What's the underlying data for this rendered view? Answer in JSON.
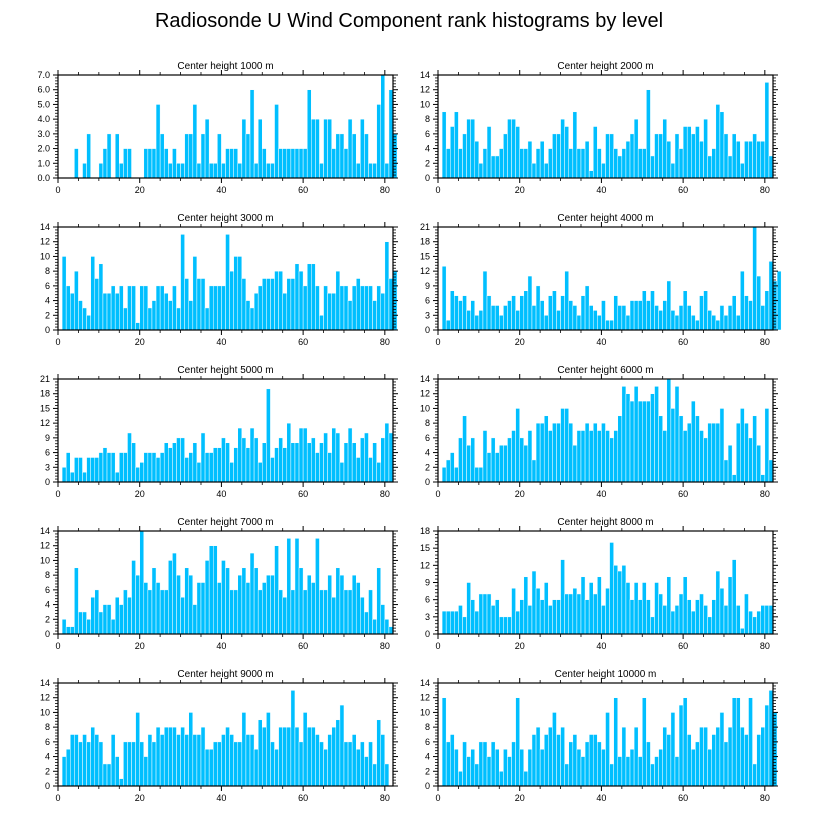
{
  "title": "Radiosonde U Wind Component rank histograms by level",
  "colors": {
    "bar": "#00BFFF",
    "bar_edge": "#FFFFFF",
    "axis": "#000000",
    "background": "#FFFFFF"
  },
  "chart_data": [
    {
      "type": "bar",
      "title": "Center height 1000 m",
      "xlim": [
        0,
        82
      ],
      "ylim": [
        0,
        7
      ],
      "xticks": [
        "0",
        "20",
        "40",
        "60",
        "80"
      ],
      "yticks": [
        "0.0",
        "1.0",
        "2.0",
        "3.0",
        "4.0",
        "5.0",
        "6.0",
        "7.0"
      ],
      "values": [
        0,
        0,
        0,
        0,
        2,
        0,
        1,
        3,
        0,
        0,
        1,
        2,
        3,
        0,
        3,
        1,
        2,
        2,
        0,
        0,
        0,
        2,
        2,
        2,
        5,
        3,
        2,
        1,
        2,
        1,
        1,
        3,
        3,
        5,
        1,
        3,
        4,
        1,
        1,
        3,
        1,
        2,
        2,
        2,
        1,
        4,
        3,
        6,
        1,
        4,
        2,
        1,
        1,
        5,
        2,
        2,
        2,
        2,
        2,
        2,
        2,
        6,
        4,
        4,
        1,
        4,
        4,
        2,
        3,
        3,
        2,
        4,
        3,
        1,
        4,
        3,
        1,
        1,
        5,
        7,
        1,
        6,
        3
      ],
      "xlabel": "",
      "ylabel": ""
    },
    {
      "type": "bar",
      "title": "Center height 2000 m",
      "xlim": [
        0,
        82
      ],
      "ylim": [
        0,
        14
      ],
      "xticks": [
        "0",
        "20",
        "40",
        "60",
        "80"
      ],
      "yticks": [
        "0",
        "2",
        "4",
        "6",
        "8",
        "10",
        "12",
        "14"
      ],
      "values": [
        0,
        9,
        4,
        7,
        9,
        4,
        6,
        8,
        8,
        5,
        2,
        4,
        7,
        3,
        3,
        4,
        6,
        8,
        8,
        7,
        4,
        4,
        5,
        2,
        4,
        5,
        2,
        4,
        6,
        6,
        8,
        7,
        4,
        9,
        4,
        4,
        5,
        1,
        7,
        4,
        2,
        6,
        6,
        4,
        3,
        4,
        5,
        6,
        8,
        4,
        4,
        12,
        3,
        6,
        6,
        8,
        5,
        2,
        6,
        4,
        7,
        7,
        6,
        7,
        5,
        8,
        3,
        4,
        10,
        9,
        6,
        3,
        6,
        5,
        2,
        5,
        5,
        6,
        5,
        5,
        13,
        3
      ],
      "xlabel": "",
      "ylabel": ""
    },
    {
      "type": "bar",
      "title": "Center height 3000 m",
      "xlim": [
        0,
        82
      ],
      "ylim": [
        0,
        14
      ],
      "xticks": [
        "0",
        "20",
        "40",
        "60",
        "80"
      ],
      "yticks": [
        "0",
        "2",
        "4",
        "6",
        "8",
        "10",
        "12",
        "14"
      ],
      "values": [
        0,
        10,
        6,
        5,
        8,
        4,
        3,
        2,
        10,
        7,
        9,
        5,
        5,
        6,
        5,
        6,
        3,
        6,
        6,
        1,
        6,
        6,
        3,
        4,
        6,
        6,
        5,
        4,
        6,
        3,
        13,
        7,
        4,
        10,
        7,
        7,
        3,
        6,
        6,
        6,
        6,
        13,
        8,
        10,
        10,
        7,
        4,
        3,
        5,
        6,
        7,
        7,
        7,
        8,
        8,
        5,
        7,
        7,
        9,
        8,
        6,
        9,
        9,
        6,
        2,
        6,
        5,
        5,
        8,
        6,
        6,
        4,
        6,
        7,
        6,
        6,
        6,
        4,
        6,
        5,
        12,
        7,
        8
      ],
      "xlabel": "",
      "ylabel": ""
    },
    {
      "type": "bar",
      "title": "Center height 4000 m",
      "xlim": [
        0,
        82
      ],
      "ylim": [
        0,
        21
      ],
      "xticks": [
        "0",
        "20",
        "40",
        "60",
        "80"
      ],
      "yticks": [
        "0",
        "3",
        "6",
        "9",
        "12",
        "15",
        "18",
        "21"
      ],
      "values": [
        0,
        13,
        2,
        8,
        7,
        6,
        7,
        4,
        6,
        3,
        4,
        12,
        7,
        5,
        5,
        3,
        5,
        6,
        7,
        4,
        7,
        8,
        11,
        5,
        9,
        6,
        3,
        7,
        8,
        4,
        7,
        12,
        6,
        5,
        3,
        7,
        9,
        5,
        4,
        3,
        6,
        2,
        2,
        7,
        5,
        5,
        3,
        6,
        6,
        6,
        8,
        6,
        8,
        5,
        4,
        6,
        10,
        4,
        3,
        5,
        8,
        5,
        3,
        2,
        7,
        8,
        4,
        3,
        2,
        5,
        3,
        5,
        7,
        3,
        12,
        7,
        6,
        21,
        11,
        5,
        8,
        14,
        10,
        12
      ],
      "xlabel": "",
      "ylabel": ""
    },
    {
      "type": "bar",
      "title": "Center height 5000 m",
      "xlim": [
        0,
        82
      ],
      "ylim": [
        0,
        21
      ],
      "xticks": [
        "0",
        "20",
        "40",
        "60",
        "80"
      ],
      "yticks": [
        "0",
        "3",
        "6",
        "9",
        "12",
        "15",
        "18",
        "21"
      ],
      "values": [
        0,
        3,
        6,
        2,
        5,
        5,
        2,
        5,
        5,
        5,
        6,
        7,
        6,
        6,
        2,
        6,
        6,
        10,
        8,
        3,
        4,
        6,
        6,
        6,
        5,
        6,
        8,
        7,
        8,
        9,
        9,
        5,
        6,
        8,
        4,
        10,
        6,
        6,
        7,
        7,
        9,
        8,
        4,
        7,
        11,
        9,
        7,
        11,
        9,
        4,
        8,
        19,
        5,
        7,
        9,
        7,
        12,
        8,
        8,
        11,
        11,
        8,
        9,
        6,
        8,
        10,
        6,
        11,
        10,
        4,
        8,
        11,
        8,
        5,
        9,
        10,
        5,
        8,
        4,
        9,
        12,
        10
      ],
      "xlabel": "",
      "ylabel": ""
    },
    {
      "type": "bar",
      "title": "Center height 6000 m",
      "xlim": [
        0,
        82
      ],
      "ylim": [
        0,
        14
      ],
      "xticks": [
        "0",
        "20",
        "40",
        "60",
        "80"
      ],
      "yticks": [
        "0",
        "2",
        "4",
        "6",
        "8",
        "10",
        "12",
        "14"
      ],
      "values": [
        0,
        2,
        3,
        4,
        2,
        6,
        9,
        5,
        6,
        2,
        2,
        7,
        4,
        6,
        4,
        5,
        5,
        6,
        7,
        10,
        6,
        5,
        7,
        3,
        8,
        8,
        9,
        7,
        8,
        8,
        10,
        10,
        8,
        5,
        7,
        7,
        8,
        7,
        8,
        7,
        8,
        7,
        6,
        7,
        9,
        13,
        12,
        11,
        13,
        11,
        11,
        11,
        12,
        13,
        9,
        7,
        14,
        10,
        13,
        9,
        7,
        8,
        11,
        9,
        7,
        6,
        8,
        8,
        8,
        10,
        3,
        5,
        1,
        8,
        10,
        8,
        6,
        9,
        5,
        1,
        10,
        3
      ],
      "xlabel": "",
      "ylabel": ""
    },
    {
      "type": "bar",
      "title": "Center height 7000 m",
      "xlim": [
        0,
        82
      ],
      "ylim": [
        0,
        14
      ],
      "xticks": [
        "0",
        "20",
        "40",
        "60",
        "80"
      ],
      "yticks": [
        "0",
        "2",
        "4",
        "6",
        "8",
        "10",
        "12",
        "14"
      ],
      "values": [
        0,
        2,
        1,
        1,
        9,
        3,
        3,
        2,
        5,
        6,
        3,
        4,
        4,
        2,
        5,
        4,
        6,
        5,
        10,
        8,
        14,
        7,
        6,
        9,
        7,
        6,
        6,
        10,
        11,
        8,
        5,
        9,
        8,
        4,
        7,
        7,
        10,
        12,
        12,
        7,
        10,
        9,
        6,
        6,
        8,
        9,
        7,
        11,
        9,
        6,
        7,
        8,
        8,
        12,
        6,
        5,
        13,
        6,
        13,
        9,
        6,
        8,
        7,
        13,
        6,
        6,
        8,
        5,
        9,
        8,
        6,
        6,
        8,
        7,
        5,
        3,
        6,
        2,
        9,
        4,
        2,
        1
      ],
      "xlabel": "",
      "ylabel": ""
    },
    {
      "type": "bar",
      "title": "Center height 8000 m",
      "xlim": [
        0,
        82
      ],
      "ylim": [
        0,
        18
      ],
      "xticks": [
        "0",
        "20",
        "40",
        "60",
        "80"
      ],
      "yticks": [
        "0",
        "3",
        "6",
        "9",
        "12",
        "15",
        "18"
      ],
      "values": [
        0,
        4,
        4,
        4,
        4,
        5,
        3,
        9,
        6,
        4,
        7,
        7,
        7,
        5,
        6,
        3,
        3,
        3,
        8,
        4,
        6,
        10,
        5,
        11,
        8,
        6,
        9,
        5,
        6,
        6,
        13,
        7,
        7,
        8,
        7,
        10,
        6,
        9,
        7,
        10,
        5,
        8,
        16,
        12,
        11,
        12,
        9,
        6,
        9,
        6,
        9,
        6,
        3,
        9,
        7,
        5,
        10,
        4,
        5,
        7,
        10,
        6,
        4,
        6,
        7,
        5,
        3,
        6,
        11,
        8,
        5,
        10,
        13,
        5,
        1,
        7,
        4,
        3,
        4,
        5,
        5,
        5
      ],
      "xlabel": "",
      "ylabel": ""
    },
    {
      "type": "bar",
      "title": "Center height 9000 m",
      "xlim": [
        0,
        82
      ],
      "ylim": [
        0,
        14
      ],
      "xticks": [
        "0",
        "20",
        "40",
        "60",
        "80"
      ],
      "yticks": [
        "0",
        "2",
        "4",
        "6",
        "8",
        "10",
        "12",
        "14"
      ],
      "values": [
        0,
        4,
        5,
        7,
        7,
        6,
        7,
        6,
        8,
        7,
        6,
        3,
        3,
        7,
        4,
        1,
        6,
        6,
        6,
        10,
        6,
        4,
        7,
        6,
        8,
        7,
        8,
        8,
        8,
        7,
        8,
        7,
        10,
        7,
        7,
        8,
        5,
        5,
        6,
        6,
        7,
        8,
        7,
        6,
        6,
        10,
        7,
        7,
        5,
        9,
        8,
        10,
        6,
        5,
        8,
        8,
        8,
        13,
        8,
        6,
        10,
        8,
        8,
        7,
        6,
        5,
        7,
        8,
        9,
        11,
        6,
        6,
        7,
        5,
        6,
        4,
        6,
        3,
        9,
        7,
        3
      ],
      "xlabel": "",
      "ylabel": ""
    },
    {
      "type": "bar",
      "title": "Center height 10000 m",
      "xlim": [
        0,
        82
      ],
      "ylim": [
        0,
        14
      ],
      "xticks": [
        "0",
        "20",
        "40",
        "60",
        "80"
      ],
      "yticks": [
        "0",
        "2",
        "4",
        "6",
        "8",
        "10",
        "12",
        "14"
      ],
      "values": [
        0,
        12,
        6,
        7,
        5,
        2,
        6,
        4,
        5,
        3,
        6,
        6,
        4,
        6,
        5,
        2,
        5,
        4,
        6,
        12,
        5,
        2,
        5,
        7,
        8,
        5,
        7,
        8,
        10,
        7,
        8,
        3,
        6,
        7,
        5,
        4,
        6,
        7,
        7,
        6,
        5,
        10,
        3,
        12,
        4,
        8,
        4,
        5,
        8,
        4,
        12,
        6,
        3,
        4,
        5,
        8,
        7,
        10,
        4,
        11,
        12,
        7,
        5,
        6,
        8,
        8,
        5,
        7,
        8,
        10,
        6,
        8,
        12,
        12,
        8,
        7,
        12,
        3,
        7,
        8,
        11,
        13,
        10
      ]
    }
  ]
}
